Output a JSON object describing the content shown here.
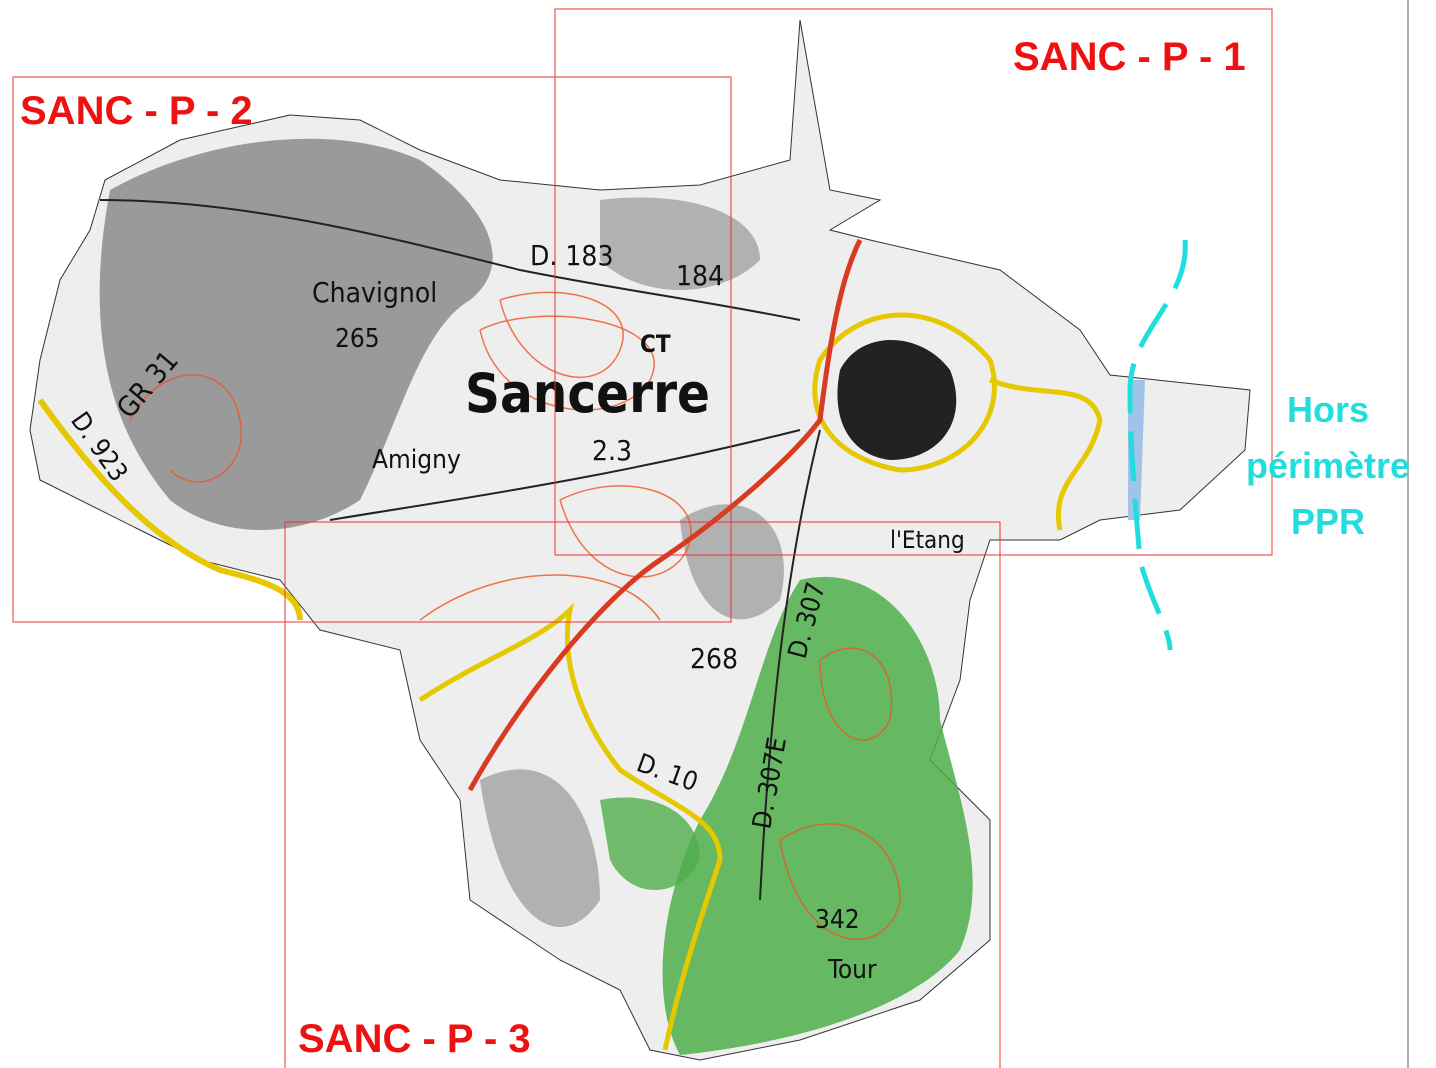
{
  "frames": [
    {
      "label": "SANC - P - 1"
    },
    {
      "label": "SANC - P - 2"
    },
    {
      "label": "SANC - P - 3"
    }
  ],
  "outside_note": {
    "lines": [
      "Hors",
      "périmètre",
      "PPR"
    ]
  },
  "map_labels": [
    "Sancerre",
    "Chavignol",
    "265",
    "Amigny",
    "D. 183",
    "184",
    "CT",
    "2.3",
    "268",
    "D. 307",
    "D. 10",
    "D. 307E",
    "342",
    "Tour",
    "l'Etang",
    "GR 31",
    "D. 923"
  ]
}
